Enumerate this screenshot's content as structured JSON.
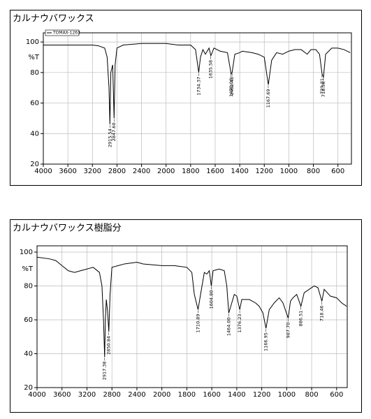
{
  "chart_data": [
    {
      "type": "line",
      "title": "カルナウバワックス",
      "y_label": "%T",
      "x": [
        4000,
        3800,
        3600,
        3400,
        3200,
        3100,
        3000,
        2960,
        2930,
        2915,
        2900,
        2870,
        2847,
        2830,
        2800,
        2700,
        2400,
        2000,
        1900,
        1800,
        1760,
        1734,
        1720,
        1700,
        1680,
        1650,
        1635,
        1610,
        1560,
        1500,
        1470,
        1462,
        1440,
        1400,
        1380,
        1300,
        1250,
        1200,
        1167,
        1140,
        1100,
        1050,
        1000,
        950,
        900,
        850,
        820,
        780,
        750,
        729,
        718,
        700,
        650,
        600,
        550,
        500
      ],
      "series": [
        {
          "name": "TOMAX-1263",
          "color": "#000000",
          "values": [
            98,
            98,
            98,
            98,
            98,
            97.5,
            96,
            90,
            70,
            46,
            80,
            85,
            50,
            85,
            96,
            98,
            99,
            99,
            98,
            98,
            95,
            80,
            90,
            95,
            92,
            96,
            91,
            96,
            94,
            93,
            79,
            80,
            92,
            93,
            94,
            93,
            92,
            90,
            72,
            88,
            93,
            92,
            94,
            95,
            95,
            92,
            95,
            95,
            92,
            79,
            77,
            92,
            96,
            96,
            95,
            93
          ]
        }
      ],
      "peak_labels": [
        2915.54,
        {
          "value": 2847.6,
          "label": "2847.60"
        },
        1734.37,
        1635.58,
        1470.06,
        1462.45,
        1167.69,
        729.81,
        718.36
      ],
      "xlim": [
        4000,
        490
      ],
      "x_expand_below": 2000,
      "x_expand_factor": 2,
      "xticks": [
        4000,
        3600,
        3200,
        2800,
        2400,
        2000,
        1800,
        1600,
        1400,
        1200,
        1000,
        800,
        600
      ],
      "ylim": [
        20,
        106
      ],
      "yticks": [
        20,
        40,
        60,
        80,
        100
      ],
      "grid": true
    },
    {
      "type": "line",
      "title": "カルナウバワックス樹脂分",
      "y_label": "%T",
      "x": [
        4000,
        3800,
        3700,
        3600,
        3500,
        3400,
        3300,
        3200,
        3100,
        3000,
        2960,
        2935,
        2917,
        2905,
        2890,
        2870,
        2850,
        2830,
        2800,
        2700,
        2600,
        2400,
        2300,
        2000,
        1900,
        1800,
        1760,
        1740,
        1710,
        1690,
        1660,
        1640,
        1620,
        1604,
        1590,
        1540,
        1500,
        1480,
        1464,
        1440,
        1420,
        1400,
        1376,
        1360,
        1300,
        1250,
        1220,
        1190,
        1166,
        1140,
        1100,
        1060,
        1030,
        988,
        970,
        950,
        920,
        886,
        860,
        820,
        780,
        750,
        718,
        700,
        650,
        600,
        560,
        520
      ],
      "series": [
        {
          "color": "#000000",
          "values": [
            97,
            96,
            95,
            92,
            89,
            88,
            89,
            90,
            91,
            88,
            80,
            60,
            38,
            60,
            72,
            65,
            53,
            75,
            91,
            92,
            93,
            94,
            93,
            92,
            92,
            91,
            88,
            75,
            66,
            75,
            88,
            87,
            89,
            80,
            89,
            90,
            89,
            80,
            64,
            70,
            75,
            74,
            66,
            72,
            72,
            70,
            68,
            64,
            55,
            66,
            70,
            73,
            70,
            61,
            71,
            73,
            75,
            68,
            76,
            78,
            80,
            79,
            71,
            78,
            74,
            73,
            70,
            68
          ]
        }
      ],
      "peak_labels": [
        2917.38,
        2850.84,
        1710.89,
        {
          "value": 1604.8,
          "label": "1604.80"
        },
        {
          "value": 1464,
          "label": "1464.00"
        },
        1376.23,
        1166.95,
        {
          "value": 987.7,
          "label": "987.70"
        },
        886.51,
        718.46
      ],
      "xlim": [
        4000,
        515
      ],
      "x_expand_below": 2000,
      "x_expand_factor": 2,
      "xticks": [
        4000,
        3600,
        3200,
        2800,
        2400,
        2000,
        1800,
        1600,
        1400,
        1200,
        1000,
        800,
        600
      ],
      "ylim": [
        20,
        103.7
      ],
      "yticks": [
        20,
        40,
        60,
        80,
        100
      ],
      "grid": true
    }
  ]
}
